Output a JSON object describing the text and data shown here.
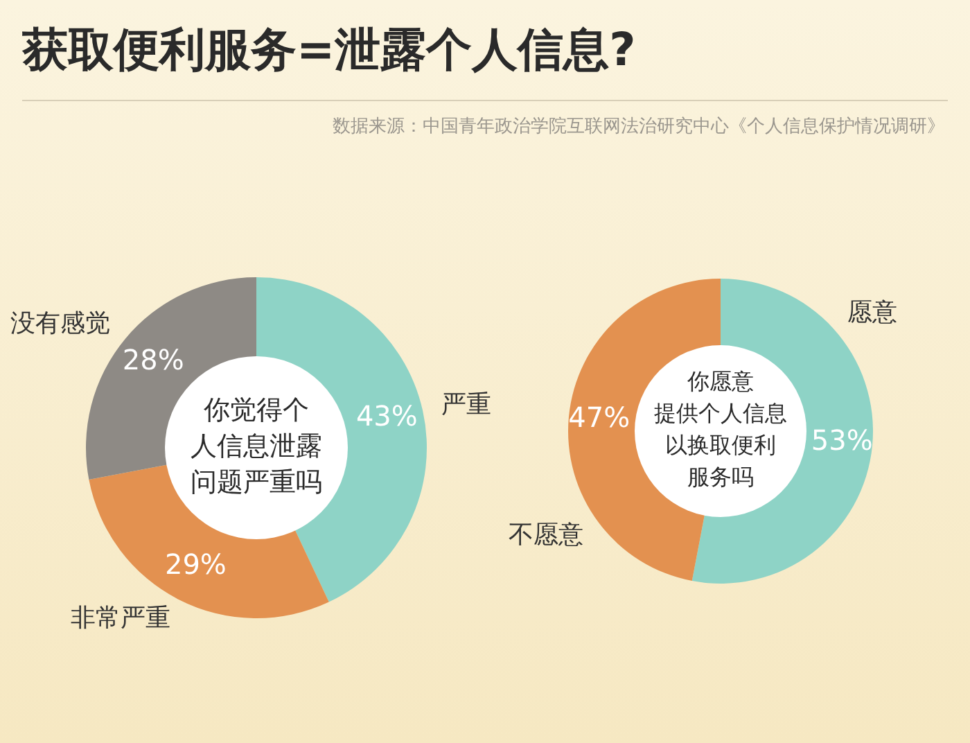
{
  "chart_data": [
    {
      "type": "donut",
      "title": "获取便利服务=泄露个人信息?",
      "subtitle": "数据来源：中国青年政治学院互联网法治研究中心《个人信息保护情况调研》",
      "categories": [
        "严重",
        "非常严重",
        "没有感觉"
      ],
      "values": [
        43,
        29,
        28
      ],
      "colors": [
        "#8ed3c6",
        "#e39150",
        "#8e8a85"
      ],
      "value_labels": [
        "43%",
        "29%",
        "28%"
      ],
      "annotations": [
        "你觉得个人信息泄露问题严重吗"
      ]
    },
    {
      "type": "donut",
      "categories": [
        "愿意",
        "不愿意"
      ],
      "values": [
        53,
        47
      ],
      "colors": [
        "#8ed3c6",
        "#e39150"
      ],
      "value_labels": [
        "53%",
        "47%"
      ],
      "annotations": [
        "你愿意提供个人信息以换取便利服务吗"
      ]
    }
  ]
}
